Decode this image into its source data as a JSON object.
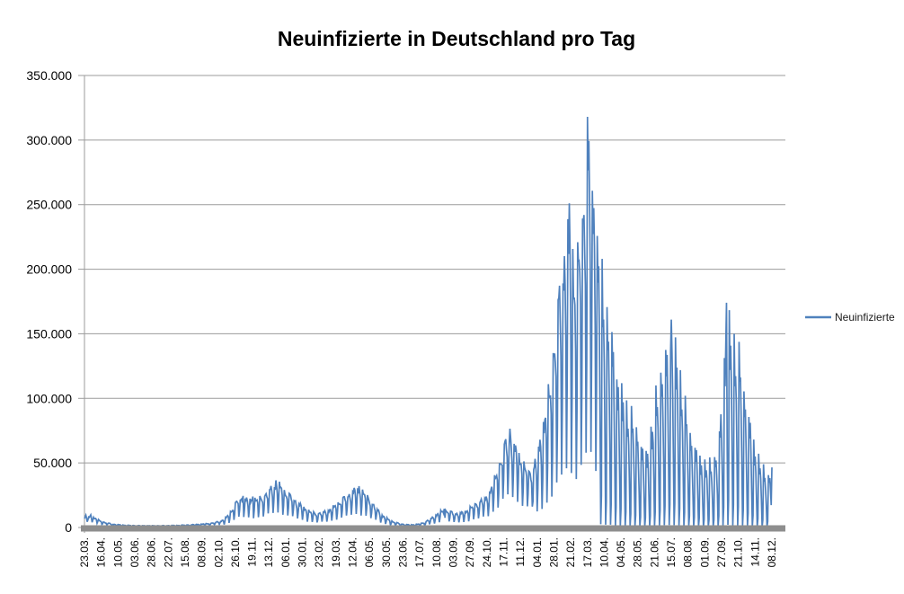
{
  "chart_data": {
    "type": "line",
    "title": "Neuinfizierte in Deutschland pro Tag",
    "series": [
      {
        "name": "Neuinfizierte",
        "color": "#4F81BD"
      }
    ],
    "legend_position": "right",
    "grid": true,
    "ylim": [
      0,
      350000
    ],
    "ytick_step": 50000,
    "ytick_labels": [
      "350.000",
      "300.000",
      "250.000",
      "200.000",
      "150.000",
      "100.000",
      "50.000",
      "0"
    ],
    "xtick_labels": [
      "23.03.",
      "16.04.",
      "10.05.",
      "03.06.",
      "28.06.",
      "22.07.",
      "15.08.",
      "08.09.",
      "02.10.",
      "26.10.",
      "19.11.",
      "13.12.",
      "06.01.",
      "30.01.",
      "23.02.",
      "19.03.",
      "12.04.",
      "06.05.",
      "30.05.",
      "23.06.",
      "17.07.",
      "10.08.",
      "03.09.",
      "27.09.",
      "24.10.",
      "17.11.",
      "11.12.",
      "04.01.",
      "28.01.",
      "21.02.",
      "17.03.",
      "10.04.",
      "04.05.",
      "28.05.",
      "21.06.",
      "15.07.",
      "08.08.",
      "01.09.",
      "27.09.",
      "21.10.",
      "14.11.",
      "08.12."
    ],
    "days_per_xtick": 24,
    "x_total_days": 984,
    "axis_color": "#9B9B9B",
    "zero_axis_color": "#8E8E8E",
    "text_color": "#000000",
    "envelope_points": [
      [
        0,
        7000
      ],
      [
        2,
        9500
      ],
      [
        5,
        8200
      ],
      [
        9,
        9800
      ],
      [
        13,
        8400
      ],
      [
        18,
        6800
      ],
      [
        24,
        5200
      ],
      [
        32,
        3800
      ],
      [
        42,
        2700
      ],
      [
        52,
        2100
      ],
      [
        62,
        1800
      ],
      [
        75,
        1600
      ],
      [
        90,
        1500
      ],
      [
        105,
        1500
      ],
      [
        120,
        1600
      ],
      [
        135,
        1800
      ],
      [
        150,
        2200
      ],
      [
        165,
        2700
      ],
      [
        178,
        3300
      ],
      [
        188,
        4300
      ],
      [
        196,
        5600
      ],
      [
        202,
        8000
      ],
      [
        208,
        12000
      ],
      [
        214,
        18000
      ],
      [
        220,
        23500
      ],
      [
        227,
        24500
      ],
      [
        234,
        23000
      ],
      [
        241,
        24000
      ],
      [
        248,
        23500
      ],
      [
        255,
        25500
      ],
      [
        262,
        29500
      ],
      [
        268,
        33500
      ],
      [
        274,
        36500
      ],
      [
        279,
        35500
      ],
      [
        284,
        31500
      ],
      [
        290,
        28500
      ],
      [
        296,
        26000
      ],
      [
        303,
        22000
      ],
      [
        310,
        18500
      ],
      [
        317,
        15500
      ],
      [
        324,
        13000
      ],
      [
        331,
        11800
      ],
      [
        338,
        12200
      ],
      [
        345,
        13500
      ],
      [
        352,
        15500
      ],
      [
        359,
        18500
      ],
      [
        366,
        22000
      ],
      [
        373,
        25500
      ],
      [
        380,
        28500
      ],
      [
        387,
        31500
      ],
      [
        393,
        32000
      ],
      [
        399,
        29500
      ],
      [
        406,
        25000
      ],
      [
        413,
        19500
      ],
      [
        420,
        14500
      ],
      [
        427,
        10000
      ],
      [
        434,
        7200
      ],
      [
        441,
        5200
      ],
      [
        448,
        3800
      ],
      [
        455,
        2900
      ],
      [
        462,
        2400
      ],
      [
        469,
        2300
      ],
      [
        476,
        2700
      ],
      [
        483,
        3600
      ],
      [
        490,
        5500
      ],
      [
        497,
        8000
      ],
      [
        503,
        10500
      ],
      [
        509,
        13000
      ],
      [
        515,
        14500
      ],
      [
        521,
        13800
      ],
      [
        527,
        12500
      ],
      [
        533,
        11800
      ],
      [
        539,
        12200
      ],
      [
        545,
        13500
      ],
      [
        551,
        16000
      ],
      [
        557,
        18500
      ],
      [
        563,
        21000
      ],
      [
        569,
        23000
      ],
      [
        576,
        25500
      ],
      [
        582,
        33000
      ],
      [
        588,
        42000
      ],
      [
        594,
        53000
      ],
      [
        600,
        66000
      ],
      [
        605,
        74000
      ],
      [
        609,
        76500
      ],
      [
        614,
        69000
      ],
      [
        619,
        63000
      ],
      [
        624,
        58500
      ],
      [
        630,
        50000
      ],
      [
        636,
        46500
      ],
      [
        642,
        48500
      ],
      [
        648,
        62000
      ],
      [
        654,
        79000
      ],
      [
        660,
        97000
      ],
      [
        666,
        118000
      ],
      [
        672,
        152000
      ],
      [
        678,
        186000
      ],
      [
        684,
        217000
      ],
      [
        690,
        243000
      ],
      [
        694,
        251000
      ],
      [
        698,
        230000
      ],
      [
        703,
        207000
      ],
      [
        708,
        231000
      ],
      [
        713,
        259000
      ],
      [
        717,
        296000
      ],
      [
        720,
        318000
      ],
      [
        724,
        299000
      ],
      [
        728,
        276000
      ],
      [
        733,
        246000
      ],
      [
        738,
        216000
      ],
      [
        744,
        200000
      ],
      [
        750,
        179000
      ],
      [
        756,
        157000
      ],
      [
        762,
        134000
      ],
      [
        768,
        116000
      ],
      [
        776,
        103000
      ],
      [
        784,
        93000
      ],
      [
        791,
        84000
      ],
      [
        797,
        70000
      ],
      [
        803,
        62000
      ],
      [
        809,
        74000
      ],
      [
        815,
        98000
      ],
      [
        821,
        122000
      ],
      [
        827,
        136000
      ],
      [
        833,
        149000
      ],
      [
        840,
        161000
      ],
      [
        845,
        152000
      ],
      [
        851,
        135000
      ],
      [
        857,
        113000
      ],
      [
        864,
        88000
      ],
      [
        871,
        73000
      ],
      [
        878,
        63000
      ],
      [
        885,
        56000
      ],
      [
        892,
        53000
      ],
      [
        899,
        56000
      ],
      [
        905,
        64000
      ],
      [
        909,
        80000
      ],
      [
        913,
        118000
      ],
      [
        916,
        152000
      ],
      [
        919,
        174000
      ],
      [
        922,
        171000
      ],
      [
        926,
        163000
      ],
      [
        931,
        156000
      ],
      [
        936,
        148000
      ],
      [
        942,
        127000
      ],
      [
        948,
        103000
      ],
      [
        954,
        86000
      ],
      [
        960,
        67000
      ],
      [
        966,
        57000
      ],
      [
        972,
        49000
      ],
      [
        978,
        44500
      ],
      [
        984,
        46500
      ]
    ],
    "weekly_pattern": [
      1.0,
      0.9,
      0.95,
      0.85,
      0.66,
      0.15,
      0.4
    ],
    "weekly_pattern_offset": 1,
    "oscillation_eras": [
      {
        "from": 0,
        "to": 197,
        "exponent": 0.35
      },
      {
        "from": 198,
        "to": 641,
        "exponent": 0.55
      },
      {
        "from": 642,
        "to": 736,
        "exponent": 0.85
      },
      {
        "from": 737,
        "to": 984,
        "exponent": 2.3
      }
    ],
    "jitter": {
      "base": 0.94,
      "amp1": 0.05,
      "freq1": 1.63,
      "amp2": 0.04,
      "freq2": 0.41
    },
    "min_value": 250
  }
}
